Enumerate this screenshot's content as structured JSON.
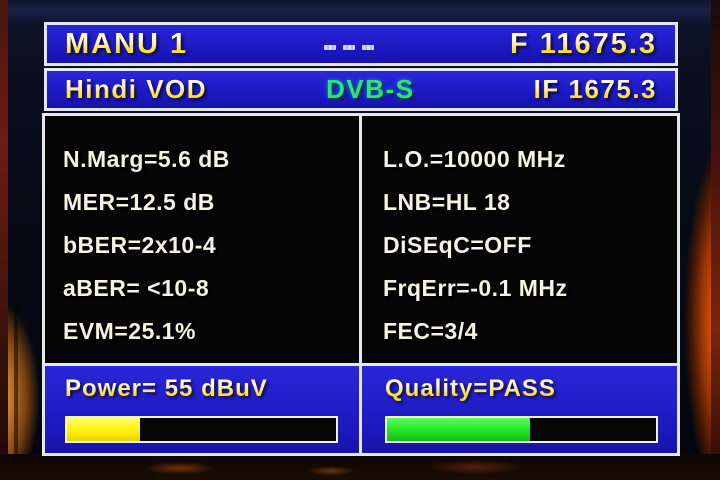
{
  "top_bar": {
    "plan_name": "MANU 1",
    "status_marks_icon": "tiny-indicator-marks",
    "frequency": "F 11675.3"
  },
  "channel_bar": {
    "channel_name": "Hindi VOD",
    "standard": "DVB-S",
    "intermediate_frequency": "IF 1675.3"
  },
  "measurements": {
    "left": [
      "N.Marg=5.6 dB",
      "MER=12.5 dB",
      "bBER=2x10-4",
      "aBER= <10-8",
      "EVM=25.1%"
    ],
    "right": [
      "L.O.=10000 MHz",
      "LNB=HL 18",
      "DiSEqC=OFF",
      "FrqErr=-0.1 MHz",
      "FEC=3/4"
    ]
  },
  "power": {
    "label": "Power= 55 dBuV",
    "bar_percent": 27,
    "bar_style": "width:27%",
    "bar_color": "#ffee00"
  },
  "quality": {
    "label": "Quality=PASS",
    "bar_percent": 53,
    "bar_style": "width:53%",
    "bar_color": "#22dd22"
  },
  "colors": {
    "panel_blue": "#1d19c4",
    "panel_border": "#e4e8ee",
    "metric_text": "#f7f3e2",
    "header_gold": "#ffe04a",
    "dvbs_green": "#2ae56e",
    "metrics_background": "#050505"
  }
}
